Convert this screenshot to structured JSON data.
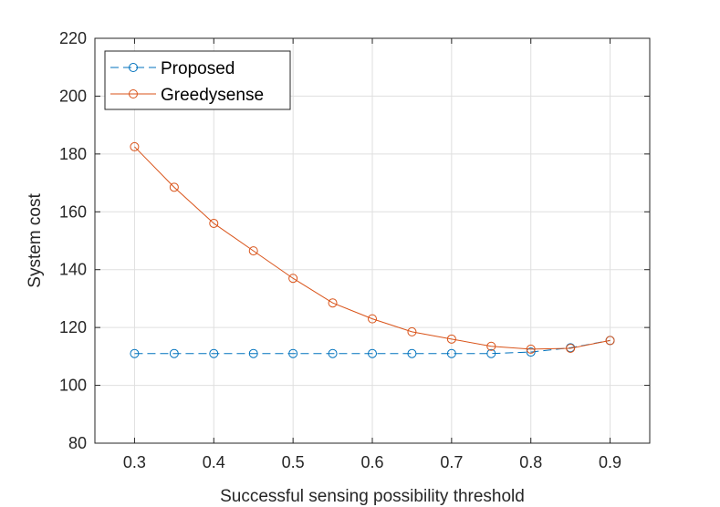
{
  "chart_data": {
    "type": "line",
    "title": "",
    "xlabel": "Successful sensing possibility threshold",
    "ylabel": "System cost",
    "xlim": [
      0.25,
      0.95
    ],
    "ylim": [
      80,
      220
    ],
    "xticks": [
      0.3,
      0.4,
      0.5,
      0.6,
      0.7,
      0.8,
      0.9
    ],
    "xtick_labels": [
      "0.3",
      "0.4",
      "0.5",
      "0.6",
      "0.7",
      "0.8",
      "0.9"
    ],
    "yticks": [
      80,
      100,
      120,
      140,
      160,
      180,
      200,
      220
    ],
    "ytick_labels": [
      "80",
      "100",
      "120",
      "140",
      "160",
      "180",
      "200",
      "220"
    ],
    "grid": true,
    "legend_position": "top-left",
    "series": [
      {
        "name": "Proposed",
        "color": "#0072BD",
        "line_style": "dashed",
        "marker": "circle",
        "x": [
          0.3,
          0.35,
          0.4,
          0.45,
          0.5,
          0.55,
          0.6,
          0.65,
          0.7,
          0.75,
          0.8,
          0.85,
          0.9
        ],
        "y": [
          111,
          111,
          111,
          111,
          111,
          111,
          111,
          111,
          111,
          111,
          111.5,
          113,
          115.5
        ]
      },
      {
        "name": "Greedysense",
        "color": "#D95319",
        "line_style": "solid",
        "marker": "circle",
        "x": [
          0.3,
          0.35,
          0.4,
          0.45,
          0.5,
          0.55,
          0.6,
          0.65,
          0.7,
          0.75,
          0.8,
          0.85,
          0.9
        ],
        "y": [
          182.5,
          168.5,
          156,
          146.5,
          137,
          128.5,
          123,
          118.5,
          116,
          113.5,
          112.5,
          112.8,
          115.5
        ]
      }
    ]
  }
}
